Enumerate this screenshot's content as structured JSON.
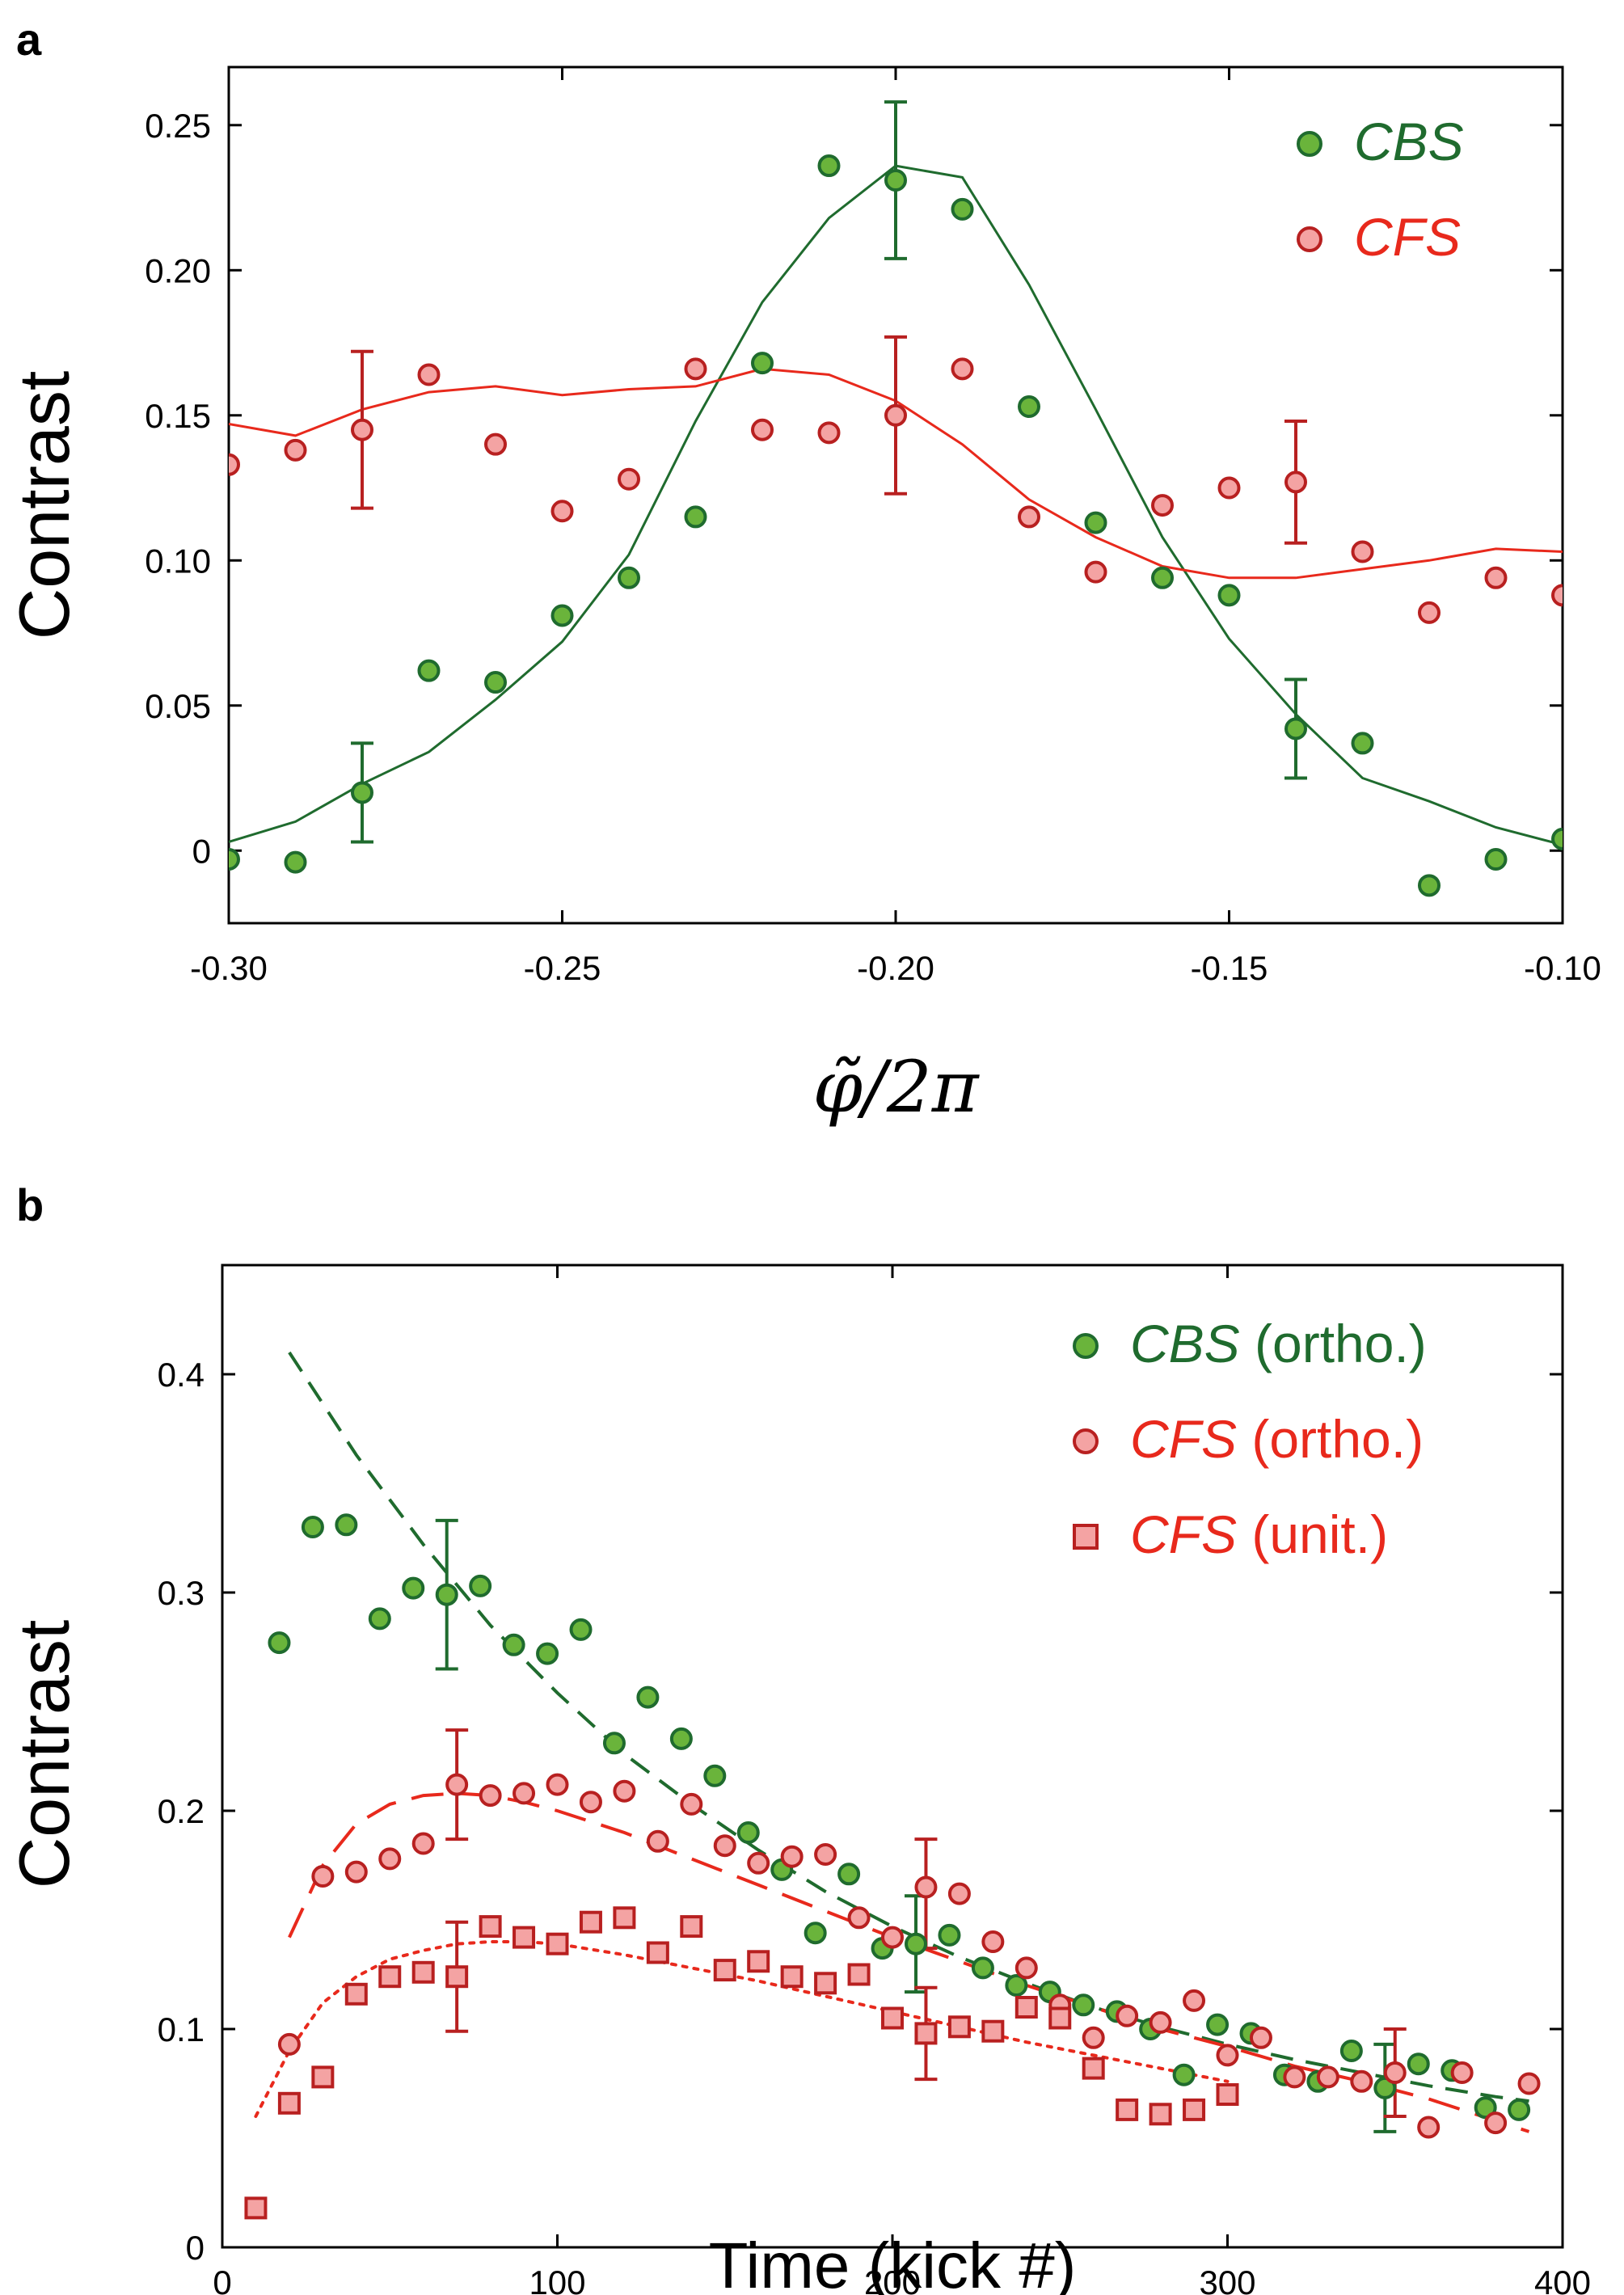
{
  "chart_data": [
    {
      "panel": "a",
      "type": "scatter",
      "xlabel": "φ̃/2π",
      "ylabel": "Contrast",
      "xlim": [
        -0.3,
        -0.1
      ],
      "ylim": [
        -0.025,
        0.27
      ],
      "xticks": [
        "-0.30",
        "-0.25",
        "-0.20",
        "-0.15",
        "-0.10"
      ],
      "yticks": [
        "0",
        "0.05",
        "0.10",
        "0.15",
        "0.20",
        "0.25"
      ],
      "legend_position": "top-right",
      "series": [
        {
          "name": "CBS",
          "color": "#6ab43b",
          "edge_color": "#1f6b2e",
          "marker": "circle",
          "x": [
            -0.3,
            -0.29,
            -0.28,
            -0.27,
            -0.26,
            -0.25,
            -0.24,
            -0.23,
            -0.22,
            -0.21,
            -0.2,
            -0.19,
            -0.18,
            -0.17,
            -0.16,
            -0.15,
            -0.14,
            -0.13,
            -0.12,
            -0.11,
            -0.1
          ],
          "y": [
            -0.003,
            -0.004,
            0.02,
            0.062,
            0.058,
            0.081,
            0.094,
            0.115,
            0.168,
            0.236,
            0.231,
            0.221,
            0.153,
            0.113,
            0.094,
            0.088,
            0.042,
            0.037,
            -0.012,
            -0.003,
            0.004
          ],
          "errorbars": [
            {
              "x": -0.28,
              "y": 0.02,
              "err": 0.017
            },
            {
              "x": -0.2,
              "y": 0.231,
              "err": 0.027
            },
            {
              "x": -0.14,
              "y": 0.042,
              "err": 0.017
            }
          ],
          "fit": {
            "x": [
              -0.3,
              -0.29,
              -0.28,
              -0.27,
              -0.26,
              -0.25,
              -0.24,
              -0.23,
              -0.22,
              -0.21,
              -0.2,
              -0.19,
              -0.18,
              -0.17,
              -0.16,
              -0.15,
              -0.14,
              -0.13,
              -0.12,
              -0.11,
              -0.1
            ],
            "y": [
              0.003,
              0.01,
              0.023,
              0.034,
              0.052,
              0.072,
              0.102,
              0.148,
              0.189,
              0.218,
              0.236,
              0.232,
              0.195,
              0.152,
              0.108,
              0.073,
              0.047,
              0.025,
              0.017,
              0.008,
              0.002
            ]
          }
        },
        {
          "name": "CFS",
          "color": "#f4a3a3",
          "edge_color": "#b82020",
          "marker": "circle",
          "x": [
            -0.3,
            -0.29,
            -0.28,
            -0.27,
            -0.26,
            -0.25,
            -0.24,
            -0.23,
            -0.22,
            -0.21,
            -0.2,
            -0.19,
            -0.18,
            -0.17,
            -0.16,
            -0.15,
            -0.14,
            -0.13,
            -0.12,
            -0.11,
            -0.1
          ],
          "y": [
            0.133,
            0.138,
            0.145,
            0.164,
            0.14,
            0.117,
            0.128,
            0.166,
            0.145,
            0.144,
            0.15,
            0.166,
            0.115,
            0.096,
            0.119,
            0.125,
            0.127,
            0.103,
            0.082,
            0.094,
            0.088
          ],
          "errorbars": [
            {
              "x": -0.28,
              "y": 0.145,
              "err": 0.027
            },
            {
              "x": -0.2,
              "y": 0.15,
              "err": 0.027
            },
            {
              "x": -0.14,
              "y": 0.127,
              "err": 0.021
            }
          ],
          "fit": {
            "x": [
              -0.3,
              -0.29,
              -0.28,
              -0.27,
              -0.26,
              -0.25,
              -0.24,
              -0.23,
              -0.22,
              -0.21,
              -0.2,
              -0.19,
              -0.18,
              -0.17,
              -0.16,
              -0.15,
              -0.14,
              -0.13,
              -0.12,
              -0.11,
              -0.1
            ],
            "y": [
              0.147,
              0.143,
              0.152,
              0.158,
              0.16,
              0.157,
              0.159,
              0.16,
              0.166,
              0.164,
              0.155,
              0.14,
              0.121,
              0.108,
              0.098,
              0.094,
              0.094,
              0.097,
              0.1,
              0.104,
              0.103
            ]
          }
        }
      ]
    },
    {
      "panel": "b",
      "type": "scatter",
      "xlabel": "Time (kick #)",
      "ylabel": "Contrast",
      "xlim": [
        0,
        400
      ],
      "ylim": [
        0,
        0.45
      ],
      "xticks": [
        "0",
        "100",
        "200",
        "300",
        "400"
      ],
      "yticks": [
        "0",
        "0.1",
        "0.2",
        "0.3",
        "0.4"
      ],
      "legend_position": "top-right",
      "series": [
        {
          "name": "CBS",
          "name_suffix": "(ortho.)",
          "color": "#6ab43b",
          "edge_color": "#1f6b2e",
          "marker": "circle",
          "x": [
            17,
            27,
            37,
            47,
            57,
            67,
            77,
            87,
            97,
            107,
            117,
            127,
            137,
            147,
            157,
            167,
            177,
            187,
            197,
            207,
            217,
            227,
            237,
            247,
            257,
            267,
            277,
            287,
            297,
            307,
            317,
            327,
            337,
            347,
            357,
            367,
            377,
            387
          ],
          "y": [
            0.277,
            0.33,
            0.331,
            0.288,
            0.302,
            0.299,
            0.303,
            0.276,
            0.272,
            0.283,
            0.231,
            0.252,
            0.233,
            0.216,
            0.19,
            0.173,
            0.144,
            0.171,
            0.137,
            0.139,
            0.143,
            0.128,
            0.12,
            0.117,
            0.111,
            0.108,
            0.1,
            0.079,
            0.102,
            0.098,
            0.079,
            0.076,
            0.09,
            0.073,
            0.084,
            0.081,
            0.064,
            0.063
          ],
          "errorbars": [
            {
              "x": 67,
              "y": 0.299,
              "err": 0.034
            },
            {
              "x": 207,
              "y": 0.139,
              "err": 0.022
            },
            {
              "x": 347,
              "y": 0.073,
              "err": 0.02
            }
          ],
          "fit": {
            "style": "dashed",
            "x": [
              20,
              40,
              60,
              80,
              100,
              120,
              140,
              160,
              180,
              200,
              220,
              240,
              260,
              280,
              300,
              320,
              340,
              360,
              380,
              390
            ],
            "y": [
              0.41,
              0.363,
              0.322,
              0.285,
              0.254,
              0.226,
              0.203,
              0.182,
              0.163,
              0.147,
              0.133,
              0.121,
              0.11,
              0.101,
              0.093,
              0.086,
              0.08,
              0.074,
              0.069,
              0.067
            ]
          }
        },
        {
          "name": "CFS",
          "name_suffix": "(ortho.)",
          "color": "#f4a3a3",
          "edge_color": "#b82020",
          "marker": "circle",
          "x": [
            20,
            30,
            40,
            50,
            60,
            70,
            80,
            90,
            100,
            110,
            120,
            130,
            140,
            150,
            160,
            170,
            180,
            190,
            200,
            210,
            220,
            230,
            240,
            250,
            260,
            270,
            280,
            290,
            300,
            310,
            320,
            330,
            340,
            350,
            360,
            370,
            380,
            390
          ],
          "y": [
            0.093,
            0.17,
            0.172,
            0.178,
            0.185,
            0.212,
            0.207,
            0.208,
            0.212,
            0.204,
            0.209,
            0.186,
            0.203,
            0.184,
            0.176,
            0.179,
            0.18,
            0.151,
            0.142,
            0.165,
            0.162,
            0.14,
            0.128,
            0.111,
            0.096,
            0.106,
            0.103,
            0.113,
            0.088,
            0.096,
            0.078,
            0.078,
            0.076,
            0.08,
            0.055,
            0.08,
            0.057,
            0.075
          ],
          "errorbars": [
            {
              "x": 70,
              "y": 0.212,
              "err": 0.025
            },
            {
              "x": 210,
              "y": 0.162,
              "err": 0.025
            },
            {
              "x": 350,
              "y": 0.08,
              "err": 0.02
            }
          ],
          "fit": {
            "style": "long-dashed",
            "x": [
              20,
              30,
              40,
              50,
              60,
              70,
              80,
              90,
              100,
              120,
              140,
              160,
              180,
              200,
              220,
              240,
              260,
              280,
              300,
              320,
              340,
              360,
              380,
              390
            ],
            "y": [
              0.142,
              0.175,
              0.194,
              0.203,
              0.207,
              0.208,
              0.207,
              0.204,
              0.2,
              0.19,
              0.178,
              0.166,
              0.154,
              0.142,
              0.131,
              0.12,
              0.11,
              0.1,
              0.092,
              0.083,
              0.076,
              0.068,
              0.058,
              0.053
            ]
          }
        },
        {
          "name": "CFS",
          "name_suffix": "(unit.)",
          "color": "#f4a3a3",
          "edge_color": "#b82020",
          "marker": "square",
          "x": [
            10,
            20,
            30,
            40,
            50,
            60,
            70,
            80,
            90,
            100,
            110,
            120,
            130,
            140,
            150,
            160,
            170,
            180,
            190,
            200,
            210,
            220,
            230,
            240,
            250,
            260,
            270,
            280,
            290,
            300
          ],
          "y": [
            0.018,
            0.066,
            0.078,
            0.116,
            0.124,
            0.126,
            0.124,
            0.147,
            0.142,
            0.139,
            0.149,
            0.151,
            0.135,
            0.147,
            0.127,
            0.131,
            0.124,
            0.121,
            0.125,
            0.105,
            0.098,
            0.101,
            0.099,
            0.11,
            0.105,
            0.082,
            0.063,
            0.061,
            0.063,
            0.07
          ],
          "errorbars": [
            {
              "x": 70,
              "y": 0.124,
              "err": 0.025
            },
            {
              "x": 210,
              "y": 0.098,
              "err": 0.021
            }
          ],
          "fit": {
            "style": "dotted",
            "x": [
              10,
              20,
              30,
              40,
              50,
              60,
              70,
              80,
              90,
              100,
              120,
              140,
              160,
              180,
              200,
              220,
              240,
              260,
              280,
              300
            ],
            "y": [
              0.06,
              0.09,
              0.112,
              0.124,
              0.132,
              0.136,
              0.139,
              0.14,
              0.14,
              0.139,
              0.134,
              0.128,
              0.122,
              0.115,
              0.108,
              0.101,
              0.094,
              0.088,
              0.082,
              0.076
            ]
          }
        }
      ]
    }
  ]
}
